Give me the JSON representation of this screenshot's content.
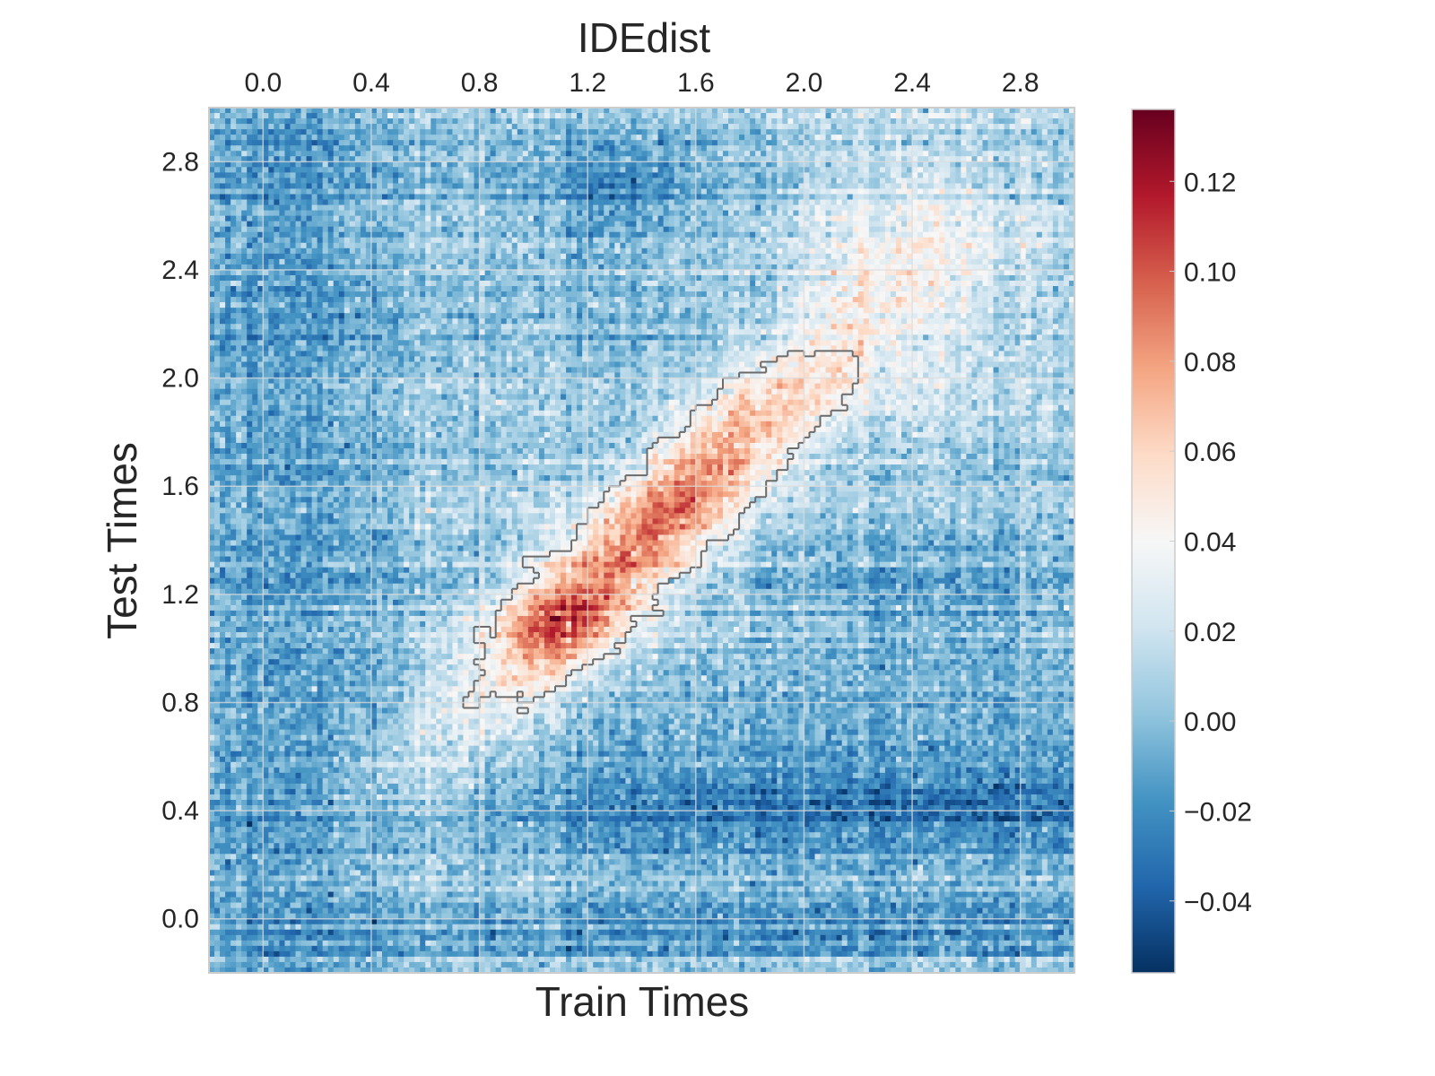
{
  "chart_data": {
    "type": "heatmap",
    "title": "IDEdist",
    "xlabel": "Train Times",
    "ylabel": "Test Times",
    "x_ticks": [
      "0.0",
      "0.4",
      "0.8",
      "1.2",
      "1.6",
      "2.0",
      "2.4",
      "2.8"
    ],
    "y_ticks": [
      "0.0",
      "0.4",
      "0.8",
      "1.2",
      "1.6",
      "2.0",
      "2.4",
      "2.8"
    ],
    "x_tick_values": [
      0.0,
      0.4,
      0.8,
      1.2,
      1.6,
      2.0,
      2.4,
      2.8
    ],
    "y_tick_values": [
      0.0,
      0.4,
      0.8,
      1.2,
      1.6,
      2.0,
      2.4,
      2.8
    ],
    "xlim": [
      -0.2,
      3.0
    ],
    "ylim": [
      -0.2,
      3.0
    ],
    "x_tick_position": "top",
    "grid": true,
    "colormap": "RdBu_r",
    "colorbar": {
      "ticks": [
        "0.12",
        "0.10",
        "0.08",
        "0.06",
        "0.04",
        "0.02",
        "0.00",
        "−0.02",
        "−0.04"
      ],
      "tick_values": [
        0.12,
        0.1,
        0.08,
        0.06,
        0.04,
        0.02,
        0.0,
        -0.02,
        -0.04
      ],
      "vmin": -0.056,
      "vmax": 0.136,
      "colors": [
        "#053061",
        "#2166ac",
        "#4393c3",
        "#92c5de",
        "#d1e5f0",
        "#f7f7f7",
        "#fddbc7",
        "#f4a582",
        "#d6604d",
        "#b2182b",
        "#67001f"
      ]
    },
    "significance_contour": {
      "color": "#6b6b6b",
      "region_center": [
        1.45,
        1.45
      ],
      "region_extent": {
        "train": [
          0.6,
          2.2
        ],
        "test": [
          0.7,
          2.1
        ]
      }
    },
    "observed_pattern": {
      "diagonal_peak_value": 0.12,
      "diagonal_peak_location": [
        1.1,
        1.1
      ],
      "off_diagonal_background": -0.01,
      "strong_negative_band_test_range": [
        0.35,
        0.5
      ],
      "late_train_late_test_value": 0.045
    }
  }
}
